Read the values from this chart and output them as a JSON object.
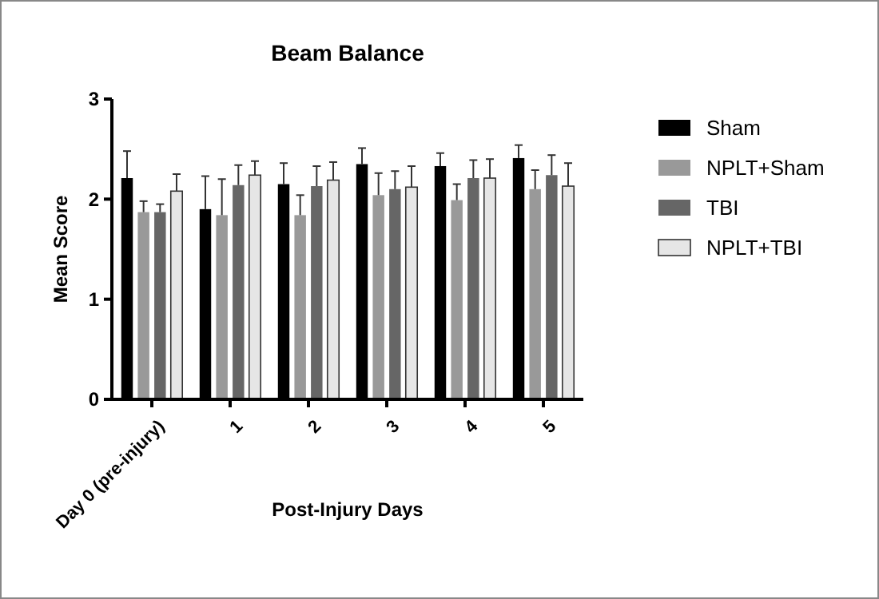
{
  "chart_data": {
    "type": "bar",
    "title": "Beam Balance",
    "xlabel": "Post-Injury Days",
    "ylabel": "Mean Score",
    "categories": [
      "Day 0 (pre-injury)",
      "1",
      "2",
      "3",
      "4",
      "5"
    ],
    "series": [
      {
        "name": "Sham",
        "color": "#000000",
        "values": [
          2.21,
          1.9,
          2.15,
          2.35,
          2.33,
          2.41
        ],
        "errors": [
          [
            2.21,
            2.48
          ],
          [
            1.9,
            2.23
          ],
          [
            2.15,
            2.36
          ],
          [
            2.35,
            2.51
          ],
          [
            2.33,
            2.46
          ],
          [
            2.41,
            2.54
          ]
        ]
      },
      {
        "name": "NPLT+Sham",
        "color": "#999999",
        "values": [
          1.87,
          1.84,
          1.84,
          2.04,
          1.99,
          2.1
        ],
        "errors": [
          [
            1.87,
            1.98
          ],
          [
            1.84,
            2.2
          ],
          [
            1.84,
            2.04
          ],
          [
            2.04,
            2.26
          ],
          [
            1.99,
            2.15
          ],
          [
            2.1,
            2.29
          ]
        ]
      },
      {
        "name": "TBI",
        "color": "#666666",
        "values": [
          1.87,
          2.14,
          2.13,
          2.1,
          2.21,
          2.24
        ],
        "errors": [
          [
            1.87,
            1.95
          ],
          [
            2.14,
            2.34
          ],
          [
            2.13,
            2.33
          ],
          [
            2.1,
            2.28
          ],
          [
            2.21,
            2.39
          ],
          [
            2.24,
            2.44
          ]
        ]
      },
      {
        "name": "NPLT+TBI",
        "color": "#e6e6e6",
        "values": [
          2.08,
          2.24,
          2.19,
          2.12,
          2.21,
          2.13
        ],
        "errors": [
          [
            2.08,
            2.25
          ],
          [
            2.24,
            2.38
          ],
          [
            2.19,
            2.37
          ],
          [
            2.12,
            2.33
          ],
          [
            2.21,
            2.4
          ],
          [
            2.13,
            2.36
          ]
        ]
      }
    ],
    "ylim": [
      0,
      3
    ],
    "yticks": [
      0,
      1,
      2,
      3
    ],
    "grid": false,
    "legend": "right"
  }
}
